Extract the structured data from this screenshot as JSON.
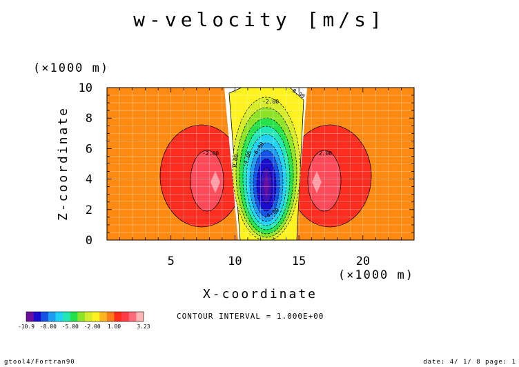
{
  "chart_data": {
    "type": "heatmap",
    "title": "w-velocity [m/s]",
    "xlabel": "X-coordinate",
    "ylabel": "Z-coordinate",
    "x_unit": "(×1000 m)",
    "y_unit": "(×1000 m)",
    "xlim": [
      0,
      24
    ],
    "ylim": [
      0,
      10
    ],
    "x_ticks": [
      "5",
      "10",
      "15",
      "20"
    ],
    "y_ticks": [
      "0",
      "2",
      "4",
      "6",
      "8",
      "10"
    ],
    "contour_interval": "CONTOUR INTERVAL = 1.000E+00",
    "colorbar_labels": [
      "-10.9",
      "-8.00",
      "-5.00",
      "-2.00",
      "1.00",
      "3.23"
    ],
    "colorbar_colors": [
      "#6a0f9e",
      "#1a0ccc",
      "#1652e6",
      "#1f9bf0",
      "#22d2f4",
      "#22e6b6",
      "#25e14a",
      "#8ee327",
      "#d6ec2a",
      "#fff21e",
      "#ffb422",
      "#ff7a18",
      "#ff2a1a",
      "#ff3c48",
      "#ff6a7a",
      "#ffb5b5"
    ],
    "contour_labels": [
      "0.00",
      "0.00",
      "-2.00",
      "-2.00",
      "-4.00",
      "-6.00",
      "-2.00",
      "-4.00"
    ],
    "value_range": [
      -10.9,
      3.23
    ],
    "structure": {
      "downdraft_center": [
        12.5,
        3.7
      ],
      "updraft_centers": [
        [
          8.5,
          3.7
        ],
        [
          16.5,
          3.7
        ]
      ],
      "min_value": -10.9,
      "max_value": 3.23
    }
  },
  "footer": {
    "left": "gtool4/Fortran90",
    "right": "date: 4/ 1/ 8 page: 1"
  }
}
